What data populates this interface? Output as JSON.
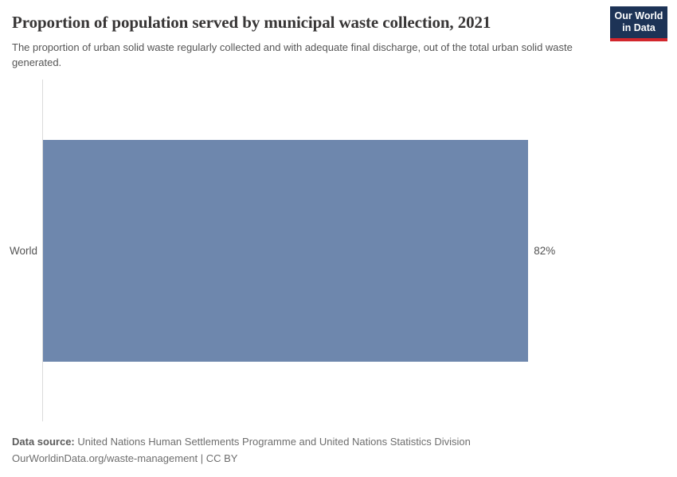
{
  "header": {
    "title": "Proportion of population served by municipal waste collection, 2021",
    "subtitle": "The proportion of urban solid waste regularly collected and with adequate final discharge, out of the total urban solid waste generated.",
    "logo": {
      "line1": "Our World",
      "line2": "in Data",
      "bg_color": "#1d3356",
      "stripe_color": "#d2262c"
    }
  },
  "chart_data": {
    "type": "bar",
    "orientation": "horizontal",
    "title": "Proportion of population served by municipal waste collection, 2021",
    "categories": [
      "World"
    ],
    "values": [
      82
    ],
    "value_labels": [
      "82%"
    ],
    "xlabel": "",
    "ylabel": "",
    "xlim": [
      0,
      100
    ],
    "grid": false,
    "legend": false,
    "bar_color": "#6e87ad",
    "axis_line_color": "#dbdbdb"
  },
  "footer": {
    "datasource_label": "Data source:",
    "datasource_text": "United Nations Human Settlements Programme and United Nations Statistics Division",
    "attribution": "OurWorldinData.org/waste-management | CC BY"
  }
}
